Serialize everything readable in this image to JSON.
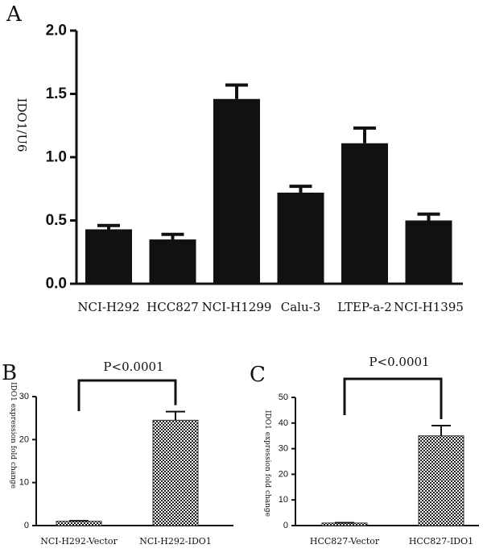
{
  "colors": {
    "bar": "#111111",
    "axis": "#111111",
    "checker_dark": "#222222",
    "checker_light": "#ffffff"
  },
  "chart_data": [
    {
      "panel": "A",
      "type": "bar",
      "ylabel": "IDO1/U6",
      "ylim": [
        0,
        2.0
      ],
      "yticks": [
        "0.0",
        "0.5",
        "1.0",
        "1.5",
        "2.0"
      ],
      "categories": [
        "NCI-H292",
        "HCC827",
        "NCI-H1299",
        "Calu-3",
        "LTEP-a-2",
        "NCI-H1395"
      ],
      "values": [
        0.43,
        0.35,
        1.46,
        0.72,
        1.11,
        0.5
      ],
      "errors": [
        0.03,
        0.04,
        0.11,
        0.05,
        0.12,
        0.05
      ],
      "grid": false
    },
    {
      "panel": "B",
      "type": "bar",
      "ylabel": "IDO1 expression fold change",
      "ylim": [
        0,
        30
      ],
      "yticks": [
        "0",
        "10",
        "20",
        "30"
      ],
      "categories": [
        "NCI-H292-Vector",
        "NCI-H292-IDO1"
      ],
      "values": [
        1.0,
        24.5
      ],
      "errors": [
        0.1,
        2.0
      ],
      "annotation": "P<0.0001",
      "grid": false
    },
    {
      "panel": "C",
      "type": "bar",
      "ylabel": "IDO1 expression fold change",
      "ylim": [
        0,
        50
      ],
      "yticks": [
        "0",
        "10",
        "20",
        "30",
        "40",
        "50"
      ],
      "categories": [
        "HCC827-Vector",
        "HCC827-IDO1"
      ],
      "values": [
        1.0,
        35.0
      ],
      "errors": [
        0.1,
        4.0
      ],
      "annotation": "P<0.0001",
      "grid": false
    }
  ]
}
